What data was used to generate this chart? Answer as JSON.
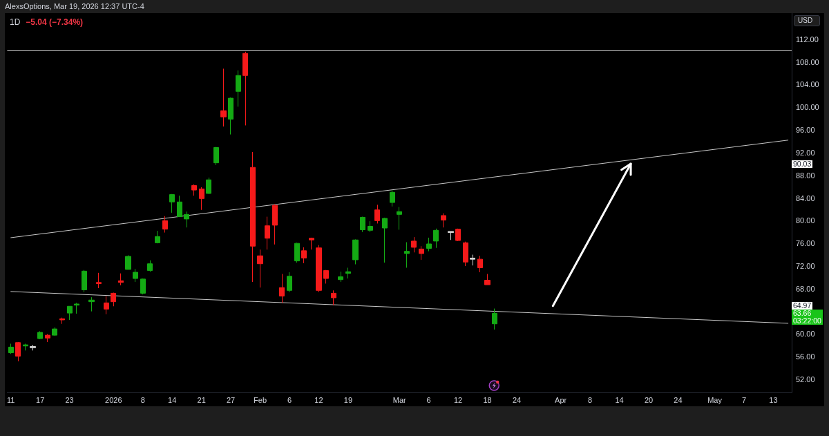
{
  "chart_data": {
    "type": "candlestick",
    "title": "1D",
    "subtitle": "−5.04 (−7.34%)",
    "categories": [
      "11",
      null,
      null,
      null,
      "17",
      null,
      null,
      null,
      "23",
      null,
      null,
      null,
      null,
      null,
      "2026",
      null,
      null,
      null,
      "8",
      null,
      null,
      null,
      "14",
      null,
      null,
      null,
      "21",
      null,
      null,
      null,
      "27",
      null,
      null,
      null,
      "Feb",
      null,
      null,
      null,
      "6",
      null,
      null,
      null,
      "12",
      null,
      null,
      null,
      "19",
      null,
      null,
      null,
      null,
      null,
      null,
      "Mar",
      null,
      null,
      null,
      "6",
      null,
      null,
      null,
      "12",
      null,
      null,
      null,
      "18",
      null,
      null,
      null,
      "24",
      null,
      null,
      null,
      null,
      null,
      "Apr",
      null,
      null,
      null,
      "8",
      null,
      null,
      null,
      "14",
      null,
      null,
      null,
      "20",
      null,
      null,
      null,
      "24",
      null,
      null,
      null,
      null,
      "May",
      null,
      null,
      null,
      "7",
      null,
      null,
      null,
      "13",
      null,
      null
    ],
    "series": [
      {
        "ohlc": [
          [
            56.7,
            58.3,
            56.5,
            57.7
          ],
          [
            58.5,
            58.6,
            55.2,
            56.1
          ],
          [
            57.9,
            58.3,
            57.1,
            58.1
          ],
          [
            57.6,
            58.1,
            57.1,
            57.8
          ],
          [
            59.2,
            60.5,
            59.1,
            60.3
          ],
          [
            59.8,
            60.0,
            58.6,
            59.3
          ],
          [
            59.8,
            61.2,
            59.7,
            60.9
          ],
          [
            62.7,
            62.9,
            61.8,
            62.5
          ],
          [
            63.7,
            64.9,
            62.5,
            64.9
          ],
          [
            65.1,
            65.5,
            63.6,
            65.3
          ],
          [
            67.8,
            71.3,
            67.4,
            71.1
          ],
          [
            65.7,
            66.5,
            64.0,
            66.0
          ],
          [
            69.1,
            70.8,
            68.1,
            68.9
          ],
          [
            65.5,
            66.7,
            63.5,
            64.4
          ],
          [
            67.2,
            67.3,
            64.9,
            65.7
          ],
          [
            69.4,
            70.7,
            68.6,
            69.1
          ],
          [
            71.4,
            73.9,
            71.4,
            73.7
          ],
          [
            69.8,
            71.5,
            69.2,
            70.9
          ],
          [
            67.2,
            69.8,
            67.0,
            69.7
          ],
          [
            71.2,
            73.0,
            71.0,
            72.4
          ],
          [
            76.1,
            78.2,
            76.0,
            77.2
          ],
          [
            80.0,
            80.8,
            77.9,
            78.5
          ],
          [
            83.3,
            84.7,
            81.4,
            84.6
          ],
          [
            80.7,
            84.4,
            80.7,
            83.3
          ],
          [
            80.3,
            81.6,
            78.8,
            81.1
          ],
          [
            86.2,
            86.4,
            84.4,
            85.4
          ],
          [
            85.6,
            85.9,
            81.9,
            83.9
          ],
          [
            84.8,
            87.6,
            84.7,
            87.2
          ],
          [
            90.2,
            93.0,
            89.8,
            92.9
          ],
          [
            99.4,
            106.8,
            96.6,
            98.3
          ],
          [
            97.9,
            101.7,
            95.2,
            101.6
          ],
          [
            102.8,
            106.5,
            100.1,
            105.6
          ],
          [
            109.5,
            109.8,
            96.8,
            105.6
          ],
          [
            89.4,
            92.1,
            69.2,
            75.5
          ],
          [
            73.8,
            74.9,
            68.2,
            72.4
          ],
          [
            79.1,
            80.7,
            74.9,
            76.9
          ],
          [
            82.7,
            82.9,
            75.8,
            79.2
          ],
          [
            68.2,
            70.6,
            65.5,
            66.7
          ],
          [
            67.7,
            70.9,
            67.4,
            70.2
          ],
          [
            72.9,
            76.1,
            72.6,
            76.0
          ],
          [
            74.7,
            75.3,
            72.5,
            73.4
          ],
          [
            76.9,
            77.0,
            74.9,
            76.6
          ],
          [
            75.2,
            75.7,
            67.4,
            67.7
          ],
          [
            71.2,
            71.3,
            68.9,
            69.8
          ],
          [
            67.2,
            67.7,
            65.1,
            66.4
          ],
          [
            69.6,
            71.0,
            69.2,
            70.1
          ],
          [
            70.7,
            71.7,
            69.8,
            71.0
          ],
          [
            73.1,
            76.7,
            72.3,
            76.6
          ],
          [
            78.4,
            80.7,
            78.0,
            80.6
          ],
          [
            78.3,
            79.9,
            78.0,
            79.0
          ],
          [
            81.9,
            82.8,
            79.5,
            80.0
          ],
          [
            78.7,
            80.5,
            72.6,
            80.4
          ],
          [
            83.2,
            85.4,
            82.5,
            85.0
          ],
          [
            81.1,
            82.4,
            78.4,
            81.6
          ],
          [
            74.2,
            76.2,
            71.7,
            74.6
          ],
          [
            76.4,
            77.1,
            74.4,
            75.3
          ],
          [
            75.0,
            75.5,
            73.1,
            74.2
          ],
          [
            75.1,
            77.0,
            74.6,
            75.9
          ],
          [
            76.4,
            78.6,
            75.2,
            78.3
          ],
          [
            80.9,
            81.3,
            78.8,
            80.1
          ],
          [
            77.9,
            78.1,
            76.6,
            78.1
          ],
          [
            78.5,
            78.6,
            76.4,
            76.5
          ],
          [
            76.1,
            76.3,
            72.0,
            72.7
          ],
          [
            73.2,
            74.0,
            72.1,
            73.4
          ],
          [
            73.2,
            73.8,
            70.9,
            71.7
          ],
          [
            69.5,
            70.6,
            68.7,
            68.7
          ],
          [
            61.8,
            64.5,
            60.8,
            63.66
          ],
          null,
          null,
          null,
          null,
          null,
          null,
          null,
          null,
          null,
          null,
          null,
          null,
          null,
          null,
          null,
          null,
          null,
          null,
          null,
          null,
          null,
          null,
          null,
          null,
          null,
          null,
          null,
          null,
          null,
          null,
          null,
          null,
          null,
          null,
          null,
          null,
          null,
          null,
          null,
          null
        ],
        "colors": [
          "#14aa14",
          "#f51a1a",
          "#14aa14",
          "#d9d9d9",
          "#14aa14",
          "#f51a1a",
          "#14aa14",
          "#f51a1a",
          "#14aa14",
          "#14aa14",
          "#14aa14",
          "#14aa14",
          "#f51a1a",
          "#f51a1a",
          "#f51a1a",
          "#f51a1a",
          "#14aa14",
          "#14aa14",
          "#14aa14",
          "#14aa14",
          "#14aa14",
          "#f51a1a",
          "#14aa14",
          "#14aa14",
          "#14aa14",
          "#f51a1a",
          "#f51a1a",
          "#14aa14",
          "#14aa14",
          "#f51a1a",
          "#14aa14",
          "#14aa14",
          "#f51a1a",
          "#f51a1a",
          "#f51a1a",
          "#f51a1a",
          "#f51a1a",
          "#f51a1a",
          "#14aa14",
          "#14aa14",
          "#f51a1a",
          "#f51a1a",
          "#f51a1a",
          "#f51a1a",
          "#f51a1a",
          "#14aa14",
          "#14aa14",
          "#14aa14",
          "#14aa14",
          "#14aa14",
          "#f51a1a",
          "#14aa14",
          "#14aa14",
          "#14aa14",
          "#14aa14",
          "#f51a1a",
          "#f51a1a",
          "#14aa14",
          "#14aa14",
          "#f51a1a",
          "#d9d9d9",
          "#f51a1a",
          "#f51a1a",
          "#d9d9d9",
          "#f51a1a",
          "#f51a1a",
          "#14aa14",
          null,
          null,
          null,
          null,
          null,
          null,
          null,
          null,
          null,
          null,
          null,
          null,
          null,
          null,
          null,
          null,
          null,
          null,
          null,
          null,
          null,
          null,
          null,
          null,
          null,
          null,
          null,
          null,
          null,
          null,
          null,
          null,
          null,
          null,
          null,
          null,
          null,
          null,
          null,
          null
        ]
      },
      {
        "type": "line",
        "color": "#c8c8c8",
        "values": [
          77.0,
          null,
          null,
          null,
          null,
          null,
          null,
          null,
          null,
          null,
          null,
          null,
          null,
          null,
          null,
          null,
          null,
          null,
          null,
          null,
          null,
          null,
          null,
          null,
          null,
          null,
          null,
          null,
          null,
          null,
          null,
          null,
          null,
          null,
          null,
          null,
          null,
          null,
          null,
          null,
          null,
          null,
          null,
          null,
          null,
          null,
          null,
          null,
          null,
          null,
          null,
          null,
          null,
          null,
          null,
          null,
          null,
          null,
          null,
          null,
          null,
          null,
          null,
          null,
          null,
          null,
          null,
          null,
          null,
          null,
          null,
          null,
          null,
          null,
          null,
          null,
          null,
          null,
          null,
          null,
          null,
          null,
          null,
          null,
          null,
          null,
          null,
          null,
          null,
          null,
          null,
          null,
          null,
          null,
          null,
          null,
          null,
          null,
          null,
          null,
          null,
          null,
          null,
          null,
          null,
          null,
          94.2
        ]
      },
      {
        "type": "line",
        "color": "#c8c8c8",
        "values": [
          67.5,
          null,
          null,
          null,
          null,
          null,
          null,
          null,
          null,
          null,
          null,
          null,
          null,
          null,
          null,
          null,
          null,
          null,
          null,
          null,
          null,
          null,
          null,
          null,
          null,
          null,
          null,
          null,
          null,
          null,
          null,
          null,
          null,
          null,
          null,
          null,
          null,
          null,
          null,
          null,
          null,
          null,
          null,
          null,
          null,
          null,
          null,
          null,
          null,
          null,
          null,
          null,
          null,
          null,
          null,
          null,
          null,
          null,
          null,
          null,
          null,
          null,
          null,
          null,
          null,
          null,
          null,
          null,
          null,
          null,
          null,
          null,
          null,
          null,
          null,
          null,
          null,
          null,
          null,
          null,
          null,
          null,
          null,
          null,
          null,
          null,
          null,
          null,
          null,
          null,
          null,
          null,
          null,
          null,
          null,
          null,
          null,
          null,
          null,
          null,
          null,
          null,
          null,
          null,
          null,
          null,
          61.9
        ]
      }
    ],
    "ylim": [
      49.7,
      116.6
    ],
    "yticks": [
      {
        "value": 52,
        "label": "52.00"
      },
      {
        "value": 56,
        "label": "56.00"
      },
      {
        "value": 60,
        "label": "60.00"
      },
      {
        "value": 68,
        "label": "68.00"
      },
      {
        "value": 72,
        "label": "72.00"
      },
      {
        "value": 76,
        "label": "76.00"
      },
      {
        "value": 80,
        "label": "80.00"
      },
      {
        "value": 84,
        "label": "84.00"
      },
      {
        "value": 88,
        "label": "88.00"
      },
      {
        "value": 92,
        "label": "92.00"
      },
      {
        "value": 96,
        "label": "96.00"
      },
      {
        "value": 100,
        "label": "100.00"
      },
      {
        "value": 104,
        "label": "104.00"
      },
      {
        "value": 108,
        "label": "108.00"
      },
      {
        "value": 112,
        "label": "112.00"
      }
    ],
    "ref_lines": [
      {
        "axis": "y",
        "value": 110,
        "color": "#c8c8c8"
      }
    ],
    "annotations": [
      "AlexsOptions, Mar 19, 2026 12:37 UTC-4",
      "USD",
      {
        "text": "90.03",
        "y": 90.03
      },
      {
        "text": "64.97",
        "y": 64.97
      },
      "63.66",
      "03:22:00"
    ]
  }
}
